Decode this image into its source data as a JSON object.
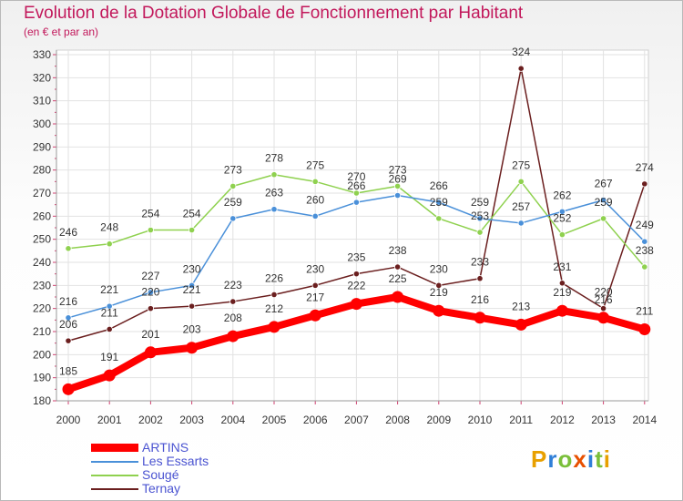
{
  "chart_data": {
    "type": "line",
    "title": "Evolution de la Dotation Globale de Fonctionnement par Habitant",
    "subtitle": "(en € et par an)",
    "categories": [
      "2000",
      "2001",
      "2002",
      "2003",
      "2004",
      "2005",
      "2006",
      "2007",
      "2008",
      "2009",
      "2010",
      "2011",
      "2012",
      "2013",
      "2014"
    ],
    "ylim": [
      180,
      330
    ],
    "yticks": [
      "180",
      "190",
      "200",
      "210",
      "220",
      "230",
      "240",
      "250",
      "260",
      "270",
      "280",
      "290",
      "300",
      "310",
      "320",
      "330"
    ],
    "grid": true,
    "series": [
      {
        "name": "ARTINS",
        "color": "#ff0000",
        "values": [
          185,
          191,
          201,
          203,
          208,
          212,
          217,
          222,
          225,
          219,
          216,
          213,
          219,
          216,
          211
        ],
        "labels": [
          "185",
          "191",
          "201",
          "203",
          "208",
          "212",
          "217",
          "222",
          "225",
          "219",
          "216",
          "213",
          "219",
          "216",
          "211"
        ]
      },
      {
        "name": "Les Essarts",
        "color": "#4a90d9",
        "values": [
          216,
          221,
          227,
          230,
          259,
          263,
          260,
          266,
          269,
          266,
          259,
          257,
          262,
          267,
          249
        ],
        "labels": [
          "216",
          "221",
          "227",
          "230",
          "259",
          "263",
          "260",
          "266",
          "269",
          "266",
          "259",
          "257",
          "262",
          "267",
          "249"
        ]
      },
      {
        "name": "Sougé",
        "color": "#8fd14f",
        "values": [
          246,
          248,
          254,
          254,
          273,
          278,
          275,
          270,
          273,
          259,
          253,
          275,
          252,
          259,
          238
        ],
        "labels": [
          "246",
          "248",
          "254",
          "254",
          "273",
          "278",
          "275",
          "270",
          "273",
          "259",
          "253",
          "275",
          "252",
          "259",
          "238"
        ]
      },
      {
        "name": "Ternay",
        "color": "#6b1f1f",
        "values": [
          206,
          211,
          220,
          221,
          223,
          226,
          230,
          235,
          238,
          230,
          233,
          324,
          231,
          220,
          274
        ],
        "labels": [
          "206",
          "211",
          "220",
          "221",
          "223",
          "226",
          "230",
          "235",
          "238",
          "230",
          "233",
          "324",
          "231",
          "220",
          "274"
        ]
      }
    ]
  },
  "logo": {
    "text": "Proxiti"
  }
}
